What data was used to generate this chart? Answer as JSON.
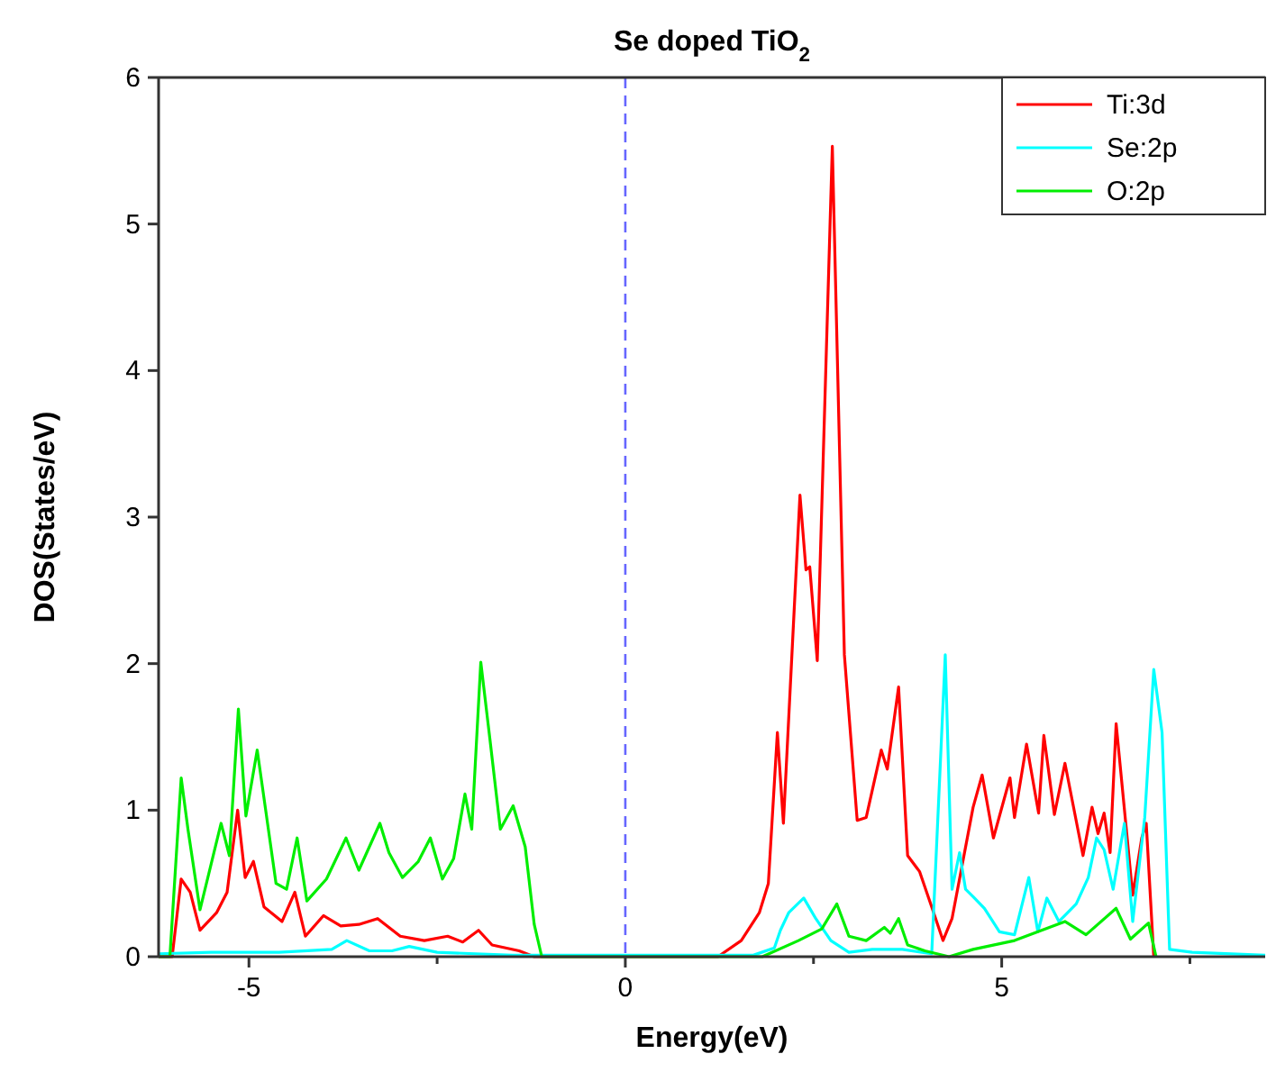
{
  "chart_data": {
    "type": "line",
    "title": "Se doped TiO$_{2}$",
    "xlabel": "Energy(eV)",
    "ylabel": "DOS(States/eV)",
    "xlim": [
      -6.2,
      8.5
    ],
    "ylim": [
      0,
      6
    ],
    "xticks": [
      -5,
      {
        "value": -2.5,
        "label": null
      },
      0,
      {
        "value": 2.5,
        "label": null
      },
      5,
      {
        "value": 7.5,
        "label": null
      }
    ],
    "yticks": [
      0,
      1,
      2,
      3,
      4,
      5,
      6
    ],
    "grid": false,
    "legend": "top right",
    "marker": "none",
    "line_style": "solid",
    "ref_lines": [
      {
        "axis": "x",
        "value": 0,
        "label": null,
        "color": "#6666ff",
        "line_style": "dashed"
      }
    ],
    "series": [
      {
        "name": "Ti:3d",
        "color": "#ff0000",
        "x": [
          -6.2,
          -6.02,
          -5.9,
          -5.78,
          -5.65,
          -5.43,
          -5.29,
          -5.15,
          -5.05,
          -4.94,
          -4.8,
          -4.56,
          -4.39,
          -4.25,
          -4.01,
          -3.78,
          -3.54,
          -3.29,
          -2.99,
          -2.67,
          -2.36,
          -2.16,
          -1.95,
          -1.77,
          -1.41,
          -1.21,
          1.23,
          1.54,
          1.78,
          1.9,
          2.02,
          2.1,
          2.32,
          2.4,
          2.45,
          2.55,
          2.75,
          2.91,
          3.08,
          3.2,
          3.4,
          3.48,
          3.63,
          3.75,
          3.91,
          4.07,
          4.22,
          4.34,
          4.62,
          4.74,
          4.89,
          5.11,
          5.17,
          5.33,
          5.49,
          5.56,
          5.7,
          5.84,
          6.08,
          6.2,
          6.28,
          6.36,
          6.44,
          6.52,
          6.74,
          6.86,
          6.92,
          7.02
        ],
        "values": [
          0,
          0,
          0.53,
          0.44,
          0.18,
          0.3,
          0.44,
          1.0,
          0.54,
          0.65,
          0.34,
          0.24,
          0.44,
          0.14,
          0.28,
          0.21,
          0.22,
          0.26,
          0.14,
          0.11,
          0.14,
          0.1,
          0.18,
          0.08,
          0.04,
          0,
          0,
          0.11,
          0.3,
          0.5,
          1.53,
          0.91,
          3.15,
          2.64,
          2.66,
          2.02,
          5.53,
          2.06,
          0.93,
          0.95,
          1.41,
          1.28,
          1.84,
          0.69,
          0.58,
          0.34,
          0.11,
          0.26,
          1.02,
          1.24,
          0.81,
          1.22,
          0.95,
          1.45,
          0.98,
          1.51,
          0.97,
          1.32,
          0.69,
          1.02,
          0.84,
          0.98,
          0.71,
          1.59,
          0.42,
          0.81,
          0.91,
          0
        ]
      },
      {
        "name": "Se:2p",
        "color": "#00ffff",
        "x": [
          -6.2,
          -5.5,
          -4.6,
          -3.9,
          -3.7,
          -3.4,
          -3.1,
          -2.87,
          -2.5,
          -1.5,
          1.7,
          1.98,
          2.06,
          2.17,
          2.37,
          2.53,
          2.73,
          2.97,
          3.28,
          3.68,
          4.07,
          4.25,
          4.34,
          4.44,
          4.52,
          4.62,
          4.77,
          4.97,
          5.17,
          5.36,
          5.48,
          5.6,
          5.76,
          5.99,
          6.15,
          6.26,
          6.36,
          6.48,
          6.63,
          6.74,
          6.9,
          7.02,
          7.13,
          7.23,
          7.53,
          8.5
        ],
        "values": [
          0.02,
          0.03,
          0.03,
          0.05,
          0.11,
          0.04,
          0.04,
          0.07,
          0.03,
          0.01,
          0.01,
          0.06,
          0.18,
          0.3,
          0.4,
          0.26,
          0.11,
          0.03,
          0.05,
          0.05,
          0.02,
          2.06,
          0.46,
          0.71,
          0.46,
          0.41,
          0.33,
          0.17,
          0.15,
          0.54,
          0.17,
          0.4,
          0.24,
          0.36,
          0.54,
          0.81,
          0.73,
          0.46,
          0.91,
          0.24,
          0.95,
          1.96,
          1.53,
          0.05,
          0.03,
          0.01
        ]
      },
      {
        "name": "O:2p",
        "color": "#00ee00",
        "x": [
          -6.2,
          -6.05,
          -5.9,
          -5.81,
          -5.65,
          -5.37,
          -5.26,
          -5.14,
          -5.04,
          -4.89,
          -4.64,
          -4.5,
          -4.36,
          -4.23,
          -3.97,
          -3.71,
          -3.54,
          -3.26,
          -3.14,
          -2.96,
          -2.75,
          -2.59,
          -2.43,
          -2.28,
          -2.13,
          -2.04,
          -1.92,
          -1.8,
          -1.66,
          -1.49,
          -1.33,
          -1.21,
          -1.11,
          1.82,
          2.3,
          2.61,
          2.81,
          2.97,
          3.2,
          3.44,
          3.52,
          3.63,
          3.75,
          3.98,
          4.3,
          4.62,
          5.17,
          5.84,
          6.12,
          6.52,
          6.71,
          6.95,
          7.05
        ],
        "values": [
          0,
          0,
          1.22,
          0.87,
          0.32,
          0.91,
          0.69,
          1.69,
          0.96,
          1.41,
          0.5,
          0.46,
          0.81,
          0.38,
          0.53,
          0.81,
          0.59,
          0.91,
          0.71,
          0.54,
          0.65,
          0.81,
          0.53,
          0.67,
          1.11,
          0.87,
          2.01,
          1.49,
          0.87,
          1.03,
          0.75,
          0.22,
          0,
          0,
          0.11,
          0.19,
          0.36,
          0.14,
          0.11,
          0.2,
          0.16,
          0.26,
          0.08,
          0.04,
          0,
          0.05,
          0.11,
          0.24,
          0.15,
          0.33,
          0.12,
          0.23,
          0
        ]
      }
    ]
  }
}
